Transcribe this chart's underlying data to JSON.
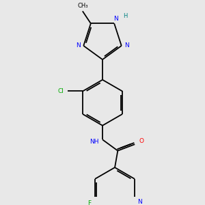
{
  "bg_color": "#e8e8e8",
  "bond_color": "#000000",
  "atom_colors": {
    "N": "#0000ff",
    "O": "#ff0000",
    "F": "#00aa00",
    "Cl": "#00aa00",
    "H": "#008080",
    "C": "#000000"
  }
}
